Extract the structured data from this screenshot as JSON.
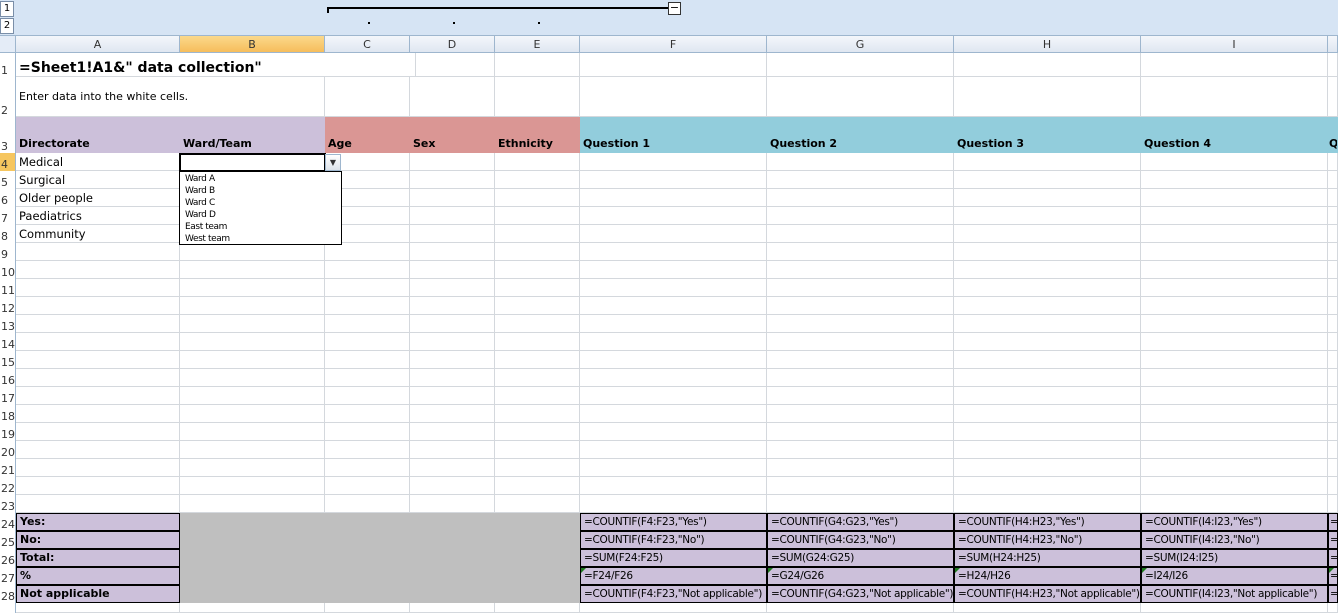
{
  "outline": {
    "levels": [
      "1",
      "2"
    ],
    "collapse_label": "−"
  },
  "columns": [
    "A",
    "B",
    "C",
    "D",
    "E",
    "F",
    "G",
    "H",
    "I"
  ],
  "rows": [
    "1",
    "2",
    "3",
    "4",
    "5",
    "6",
    "7",
    "8",
    "9",
    "10",
    "11",
    "12",
    "13",
    "14",
    "15",
    "16",
    "17",
    "18",
    "19",
    "20",
    "21",
    "22",
    "23",
    "24",
    "25",
    "26",
    "27",
    "28"
  ],
  "title": "=Sheet1!A1&\" data collection\"",
  "instructions": "Enter data into the white cells.",
  "headers": [
    "Directorate",
    "Ward/Team",
    "Age",
    "Sex",
    "Ethnicity",
    "Question 1",
    "Question 2",
    "Question 3",
    "Question 4",
    "Q"
  ],
  "header_colors": {
    "directorate": "#ccc0da",
    "demographics": "#da9694",
    "questions": "#92cddc",
    "summary": "#ccc0da",
    "gray": "#bfbfbf"
  },
  "directorates": [
    "Medical",
    "Surgical",
    "Older people",
    "Paediatrics",
    "Community"
  ],
  "dropdown": {
    "options": [
      "Ward A",
      "Ward B",
      "Ward C",
      "Ward D",
      "East team",
      "West team"
    ]
  },
  "summary_labels": [
    "Yes:",
    "No:",
    "Total:",
    "%",
    "Not applicable"
  ],
  "summary_formulas": [
    [
      "=COUNTIF(F4:F23,\"Yes\")",
      "=COUNTIF(G4:G23,\"Yes\")",
      "=COUNTIF(H4:H23,\"Yes\")",
      "=COUNTIF(I4:I23,\"Yes\")",
      "="
    ],
    [
      "=COUNTIF(F4:F23,\"No\")",
      "=COUNTIF(G4:G23,\"No\")",
      "=COUNTIF(H4:H23,\"No\")",
      "=COUNTIF(I4:I23,\"No\")",
      "="
    ],
    [
      "=SUM(F24:F25)",
      "=SUM(G24:G25)",
      "=SUM(H24:H25)",
      "=SUM(I24:I25)",
      "="
    ],
    [
      "=F24/F26",
      "=G24/G26",
      "=H24/H26",
      "=I24/I26",
      "="
    ],
    [
      "=COUNTIF(F4:F23,\"Not applicable\")",
      "=COUNTIF(G4:G23,\"Not applicable\")",
      "=COUNTIF(H4:H23,\"Not applicable\")",
      "=COUNTIF(I4:I23,\"Not applicable\")",
      "="
    ]
  ]
}
